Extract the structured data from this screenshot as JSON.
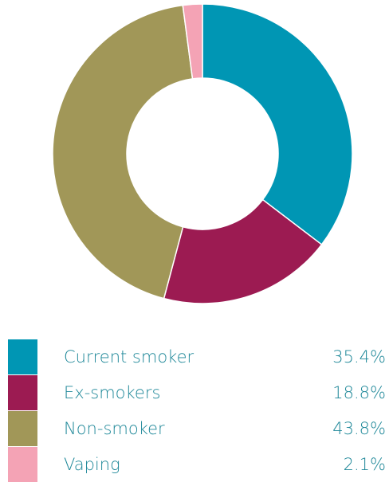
{
  "chart_data": {
    "type": "pie",
    "donut": true,
    "categories": [
      "Current smoker",
      "Ex-smokers",
      "Non-smoker",
      "Vaping"
    ],
    "values": [
      35.4,
      18.8,
      43.8,
      2.1
    ],
    "value_labels": [
      "35.4%",
      "18.8%",
      "43.8%",
      "2.1%"
    ],
    "colors": [
      "#0096b4",
      "#9c1b52",
      "#a19758",
      "#f4a3b5"
    ],
    "legend_position": "bottom",
    "start": "top",
    "direction": "clockwise"
  }
}
